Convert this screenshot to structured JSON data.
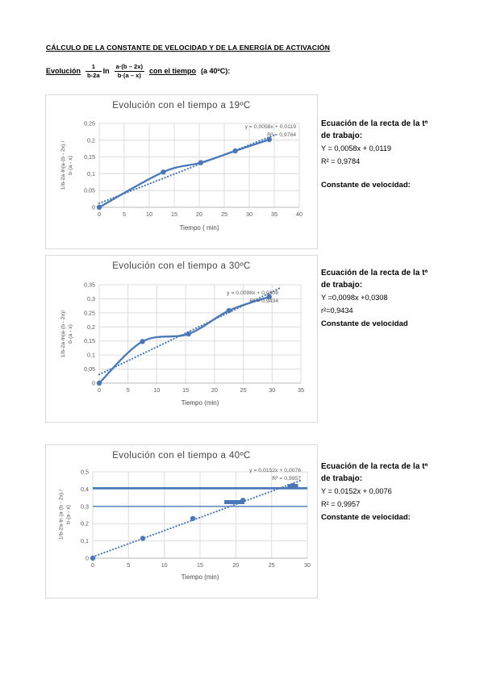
{
  "header": {
    "title": "CÁLCULO DE LA CONSTANTE DE VELOCIDAD Y DE LA ENERGÍA DE ACTIVACIÓN",
    "formula": {
      "prefix": "Evolución",
      "frac1_num": "1",
      "frac1_den": "b-2a",
      "operator": "ln",
      "frac2_num": "a·(b – 2x)",
      "frac2_den": "b·(a – x)",
      "tail_underlined": "con el tiempo",
      "tail": "(a 40ºC):"
    }
  },
  "blocks": [
    {
      "heading_line1": "Ecuación de la recta de la tª",
      "heading_line2": "de trabajo:",
      "equation": "Y = 0,0058x + 0,0119",
      "r2": "R² = 0,9784",
      "constant": "Constante de velocidad:"
    },
    {
      "heading_line1": "Ecuación de la recta de la tª",
      "heading_line2": "de trabajo:",
      "equation": "Y =0,0098x +0,0308",
      "r2": "r²=0,9434",
      "constant": "Constante de velocidad"
    },
    {
      "heading_line1": "Ecuación de la recta de la tª",
      "heading_line2": "de trabajo:",
      "equation": "Y = 0,0152x + 0,0076",
      "r2": "R² = 0,9957",
      "constant": "Constante de velocidad:"
    }
  ],
  "colors": {
    "series_blue": "#4a77b8",
    "gridline": "#dcdcdc",
    "axis_line": "#b9b9b9",
    "tick_text": "#595959"
  },
  "chart_data": [
    {
      "type": "line",
      "title": "Evolución con el tiempo a 19ºC",
      "xlabel": "Tiempo ( min)",
      "ylabel_line1": "1/b-2a·ln(a·(b - 2x) /",
      "ylabel_line2": "b·(a - x)",
      "xlim": [
        0,
        40
      ],
      "ylim": [
        0,
        0.25
      ],
      "xticks": [
        0,
        5,
        10,
        15,
        20,
        25,
        30,
        35,
        40
      ],
      "xtick_labels": [
        "0",
        "5",
        "10",
        "15",
        "20",
        "25",
        "30",
        "35",
        "40"
      ],
      "yticks": [
        0,
        0.05,
        0.1,
        0.15,
        0.2,
        0.25
      ],
      "ytick_labels": [
        "0",
        "0,05",
        "0,1",
        "0,15",
        "0,2",
        "0,25"
      ],
      "points": [
        [
          0,
          0
        ],
        [
          12.8,
          0.105
        ],
        [
          20.3,
          0.133
        ],
        [
          27.2,
          0.168
        ],
        [
          34,
          0.202
        ]
      ],
      "solid_line": true,
      "trendline": {
        "slope": 0.0058,
        "intercept": 0.0119,
        "x_start": 0,
        "x_end": 35.4
      },
      "annotation_eq": "y = 0,0058x + 0,0119",
      "annotation_r2": "R² = 0,9784",
      "grid": true,
      "legend": false
    },
    {
      "type": "line",
      "title": "Evolución con el tiempo a 30ºC",
      "xlabel": "Tiempo (min)",
      "ylabel_line1": "1/b-2a·ln(a·(b - 2x)/",
      "ylabel_line2": "b·(a - x)",
      "xlim": [
        0,
        35
      ],
      "ylim": [
        0,
        0.35
      ],
      "xticks": [
        0,
        5,
        10,
        15,
        20,
        25,
        30,
        35
      ],
      "xtick_labels": [
        "0",
        "5",
        "10",
        "15",
        "20",
        "25",
        "30",
        "35"
      ],
      "yticks": [
        0,
        0.05,
        0.1,
        0.15,
        0.2,
        0.25,
        0.3,
        0.35
      ],
      "ytick_labels": [
        "0",
        "0,05",
        "0,1",
        "0,15",
        "0,2",
        "0,25",
        "0,3",
        "0,35"
      ],
      "points": [
        [
          0,
          0
        ],
        [
          7.5,
          0.148
        ],
        [
          15.5,
          0.175
        ],
        [
          22.5,
          0.258
        ],
        [
          29.5,
          0.307
        ]
      ],
      "solid_line": true,
      "trendline": {
        "slope": 0.0098,
        "intercept": 0.0308,
        "x_start": 0,
        "x_end": 31.5
      },
      "annotation_eq": "y = 0,0098x + 0,0308",
      "annotation_r2": "R² = 0,9434",
      "grid": true,
      "legend": false
    },
    {
      "type": "scatter",
      "title": "Evolución con el tiempo a 40ºC",
      "xlabel": "Tiempo (min)",
      "ylabel_line1": "1/b-2a·ln (a·(b - 2x) /",
      "ylabel_line2": "b·(a - x)",
      "xlim": [
        0,
        30
      ],
      "ylim": [
        0,
        0.5
      ],
      "xticks": [
        0,
        5,
        10,
        15,
        20,
        25,
        30
      ],
      "xtick_labels": [
        "0",
        "5",
        "10",
        "15",
        "20",
        "25",
        "30"
      ],
      "yticks": [
        0,
        0.1,
        0.2,
        0.3,
        0.4,
        0.5
      ],
      "ytick_labels": [
        "0",
        "0,1",
        "0,2",
        "0,3",
        "0,4",
        "0,5"
      ],
      "points": [
        [
          0,
          0
        ],
        [
          7,
          0.115
        ],
        [
          14,
          0.23
        ],
        [
          21,
          0.335
        ],
        [
          28,
          0.42
        ]
      ],
      "solid_line": false,
      "hlines": [
        {
          "y": 0.405,
          "width": 2.6
        },
        {
          "y": 0.3,
          "width": 1.3
        }
      ],
      "segments": [
        {
          "x1": 18.4,
          "x2": 21.2,
          "y": 0.325,
          "width": 5
        },
        {
          "x1": 27.2,
          "x2": 28.7,
          "y": 0.42,
          "width": 4
        }
      ],
      "trendline": {
        "slope": 0.0152,
        "intercept": 0.0076,
        "x_start": 0,
        "x_end": 29
      },
      "annotation_eq": "y = 0,0152x + 0,0076",
      "annotation_r2": "R² = 0,9957",
      "grid": true,
      "legend": false
    }
  ]
}
